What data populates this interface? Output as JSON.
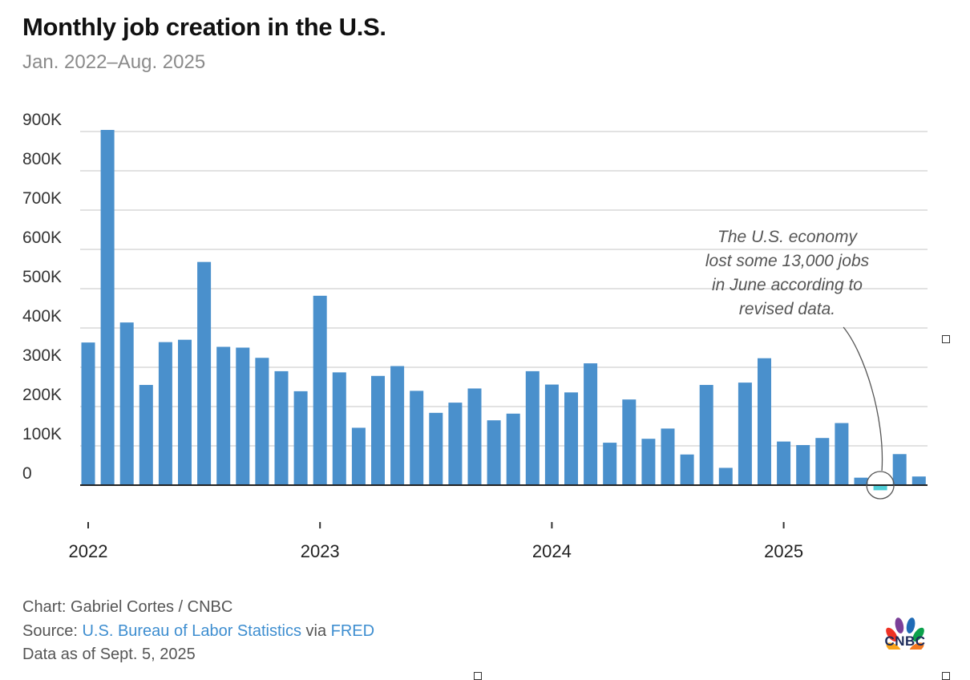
{
  "title": "Monthly job creation in the U.S.",
  "subtitle": "Jan. 2022–Aug. 2025",
  "annotation": [
    "The U.S. economy",
    "lost some 13,000 jobs",
    "in June according to",
    "revised data."
  ],
  "footer": {
    "credit": "Chart: Gabriel Cortes / CNBC",
    "source_prefix": "Source: ",
    "source_link": "U.S. Bureau of Labor Statistics",
    "source_via": " via ",
    "source_link2": "FRED",
    "data_as_of": "Data as of Sept. 5, 2025"
  },
  "logo": {
    "text": "CNBC",
    "icon": "cnbc-peacock-icon"
  },
  "colors": {
    "bar": "#4a90cc",
    "negative_bar": "#4ecdd6",
    "grid": "#d9d9d9",
    "axis": "#222222",
    "link": "#3e8ed0"
  },
  "chart_data": {
    "type": "bar",
    "title": "Monthly job creation in the U.S.",
    "subtitle": "Jan. 2022–Aug. 2025",
    "ylim": [
      0,
      900000
    ],
    "yticks": [
      0,
      100000,
      200000,
      300000,
      400000,
      500000,
      600000,
      700000,
      800000,
      900000
    ],
    "ytick_labels": [
      "0",
      "100K",
      "200K",
      "300K",
      "400K",
      "500K",
      "600K",
      "700K",
      "800K",
      "900K"
    ],
    "xtick_labels": [
      "2022",
      "2023",
      "2024",
      "2025"
    ],
    "grid": true,
    "categories": [
      "Jan 2022",
      "Feb 2022",
      "Mar 2022",
      "Apr 2022",
      "May 2022",
      "Jun 2022",
      "Jul 2022",
      "Aug 2022",
      "Sep 2022",
      "Oct 2022",
      "Nov 2022",
      "Dec 2022",
      "Jan 2023",
      "Feb 2023",
      "Mar 2023",
      "Apr 2023",
      "May 2023",
      "Jun 2023",
      "Jul 2023",
      "Aug 2023",
      "Sep 2023",
      "Oct 2023",
      "Nov 2023",
      "Dec 2023",
      "Jan 2024",
      "Feb 2024",
      "Mar 2024",
      "Apr 2024",
      "May 2024",
      "Jun 2024",
      "Jul 2024",
      "Aug 2024",
      "Sep 2024",
      "Oct 2024",
      "Nov 2024",
      "Dec 2024",
      "Jan 2025",
      "Feb 2025",
      "Mar 2025",
      "Apr 2025",
      "May 2025",
      "Jun 2025",
      "Jul 2025",
      "Aug 2025"
    ],
    "values": [
      363000,
      904000,
      414000,
      255000,
      364000,
      370000,
      568000,
      352000,
      350000,
      324000,
      290000,
      239000,
      482000,
      287000,
      146000,
      278000,
      303000,
      240000,
      184000,
      210000,
      246000,
      165000,
      182000,
      290000,
      256000,
      236000,
      310000,
      108000,
      218000,
      118000,
      144000,
      78000,
      255000,
      44000,
      261000,
      323000,
      111000,
      102000,
      120000,
      158000,
      19000,
      -13000,
      79000,
      22000
    ]
  }
}
